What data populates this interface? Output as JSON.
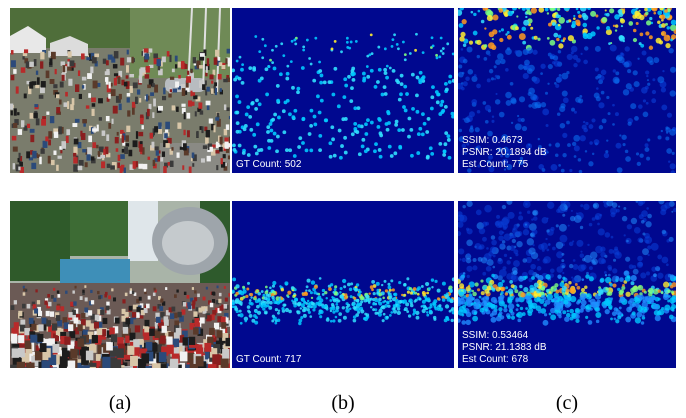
{
  "colors": {
    "density_bg": "#00088f",
    "text": "#ffffff"
  },
  "rows": [
    {
      "photo": {
        "name": "crowd-photo-plaza"
      },
      "ground_truth": {
        "label": "GT Count: 502"
      },
      "estimate": {
        "ssim": "SSIM: 0.4673",
        "psnr": "PSNR: 20.1894 dB",
        "count": "Est Count: 775"
      }
    },
    {
      "photo": {
        "name": "crowd-photo-concert"
      },
      "ground_truth": {
        "label": "GT Count: 717"
      },
      "estimate": {
        "ssim": "SSIM: 0.53464",
        "psnr": "PSNR: 21.1383 dB",
        "count": "Est Count: 678"
      }
    }
  ],
  "captions": [
    "(a)",
    "(b)",
    "(c)"
  ]
}
